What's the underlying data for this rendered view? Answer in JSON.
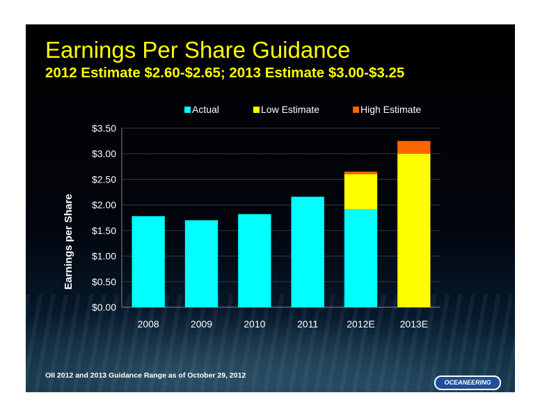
{
  "slide": {
    "title": "Earnings Per Share Guidance",
    "subtitle": "2012 Estimate $2.60-$2.65; 2013 Estimate $3.00-$3.25",
    "footnote": "OII 2012 and 2013 Guidance Range as of October 29, 2012",
    "logo": "OCEANEERING"
  },
  "colors": {
    "actual": "#00ffff",
    "low_estimate": "#ffff00",
    "high_estimate": "#ff6600",
    "title": "#ffff00"
  },
  "chart_data": {
    "type": "bar",
    "stacked": true,
    "categories": [
      "2008",
      "2009",
      "2010",
      "2011",
      "2012E",
      "2013E"
    ],
    "series": [
      {
        "name": "Actual",
        "color": "#00ffff",
        "values": [
          1.78,
          1.7,
          1.82,
          2.16,
          1.92,
          0
        ]
      },
      {
        "name": "Low Estimate",
        "color": "#ffff00",
        "values": [
          0,
          0,
          0,
          0,
          0.68,
          3.0
        ]
      },
      {
        "name": "High Estimate",
        "color": "#ff6600",
        "values": [
          0,
          0,
          0,
          0,
          0.05,
          0.25
        ]
      }
    ],
    "ylabel": "Earnings per Share",
    "ylim": [
      0,
      3.5
    ],
    "yticks": [
      "$0.00",
      "$0.50",
      "$1.00",
      "$1.50",
      "$2.00",
      "$2.50",
      "$3.00",
      "$3.50"
    ],
    "ytick_values": [
      0,
      0.5,
      1.0,
      1.5,
      2.0,
      2.5,
      3.0,
      3.5
    ],
    "legend_position": "top",
    "grid": true
  }
}
